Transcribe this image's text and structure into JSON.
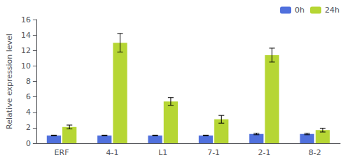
{
  "chart_data": {
    "type": "bar",
    "categories": [
      "ERF",
      "4-1",
      "L1",
      "7-1",
      "2-1",
      "8-2"
    ],
    "series": [
      {
        "name": "0h",
        "values": [
          1.0,
          1.0,
          1.0,
          1.0,
          1.2,
          1.2
        ],
        "errors": [
          0.05,
          0.05,
          0.05,
          0.05,
          0.1,
          0.1
        ]
      },
      {
        "name": "24h",
        "values": [
          2.1,
          13.0,
          5.4,
          3.1,
          11.4,
          1.7
        ],
        "errors": [
          0.25,
          1.2,
          0.5,
          0.5,
          0.9,
          0.25
        ]
      }
    ],
    "ylabel": "Relative expression level",
    "ylim": [
      0,
      16
    ],
    "yticks": [
      0,
      2,
      4,
      6,
      8,
      10,
      12,
      14,
      16
    ],
    "grid": false,
    "legend": "upper right"
  }
}
